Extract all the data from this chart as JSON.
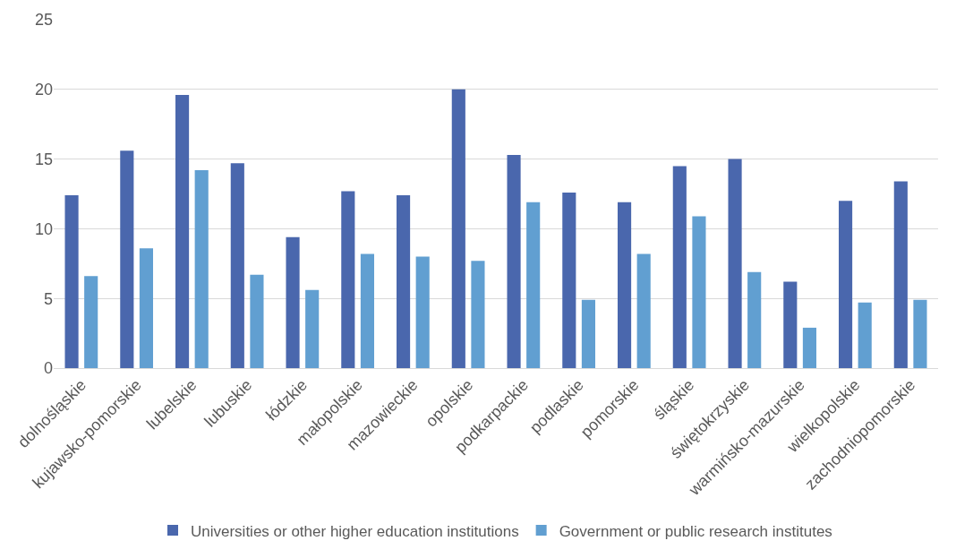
{
  "chart_data": {
    "type": "bar",
    "categories": [
      "dolnośląskie",
      "kujawsko-pomorskie",
      "lubelskie",
      "lubuskie",
      "łódzkie",
      "małopolskie",
      "mazowieckie",
      "opolskie",
      "podkarpackie",
      "podlaskie",
      "pomorskie",
      "śląskie",
      "świętokrzyskie",
      "warmińsko-mazurskie",
      "wielkopolskie",
      "zachodniopomorskie"
    ],
    "series": [
      {
        "name": "Universities or other higher education institutions",
        "color": "#4a67ad",
        "values": [
          12.4,
          15.6,
          19.6,
          14.7,
          9.4,
          12.7,
          12.4,
          20.0,
          15.3,
          12.6,
          11.9,
          14.5,
          15.0,
          6.2,
          12.0,
          13.4
        ]
      },
      {
        "name": "Government or public research institutes",
        "color": "#619fd1",
        "values": [
          6.6,
          8.6,
          14.2,
          6.7,
          5.6,
          8.2,
          8.0,
          7.7,
          11.9,
          4.9,
          8.2,
          10.9,
          6.9,
          2.9,
          4.7,
          4.9
        ]
      }
    ],
    "ylim": [
      0,
      25
    ],
    "yticks": [
      0,
      5,
      10,
      15,
      20,
      25
    ],
    "grid": "y",
    "legend": "bottom"
  }
}
